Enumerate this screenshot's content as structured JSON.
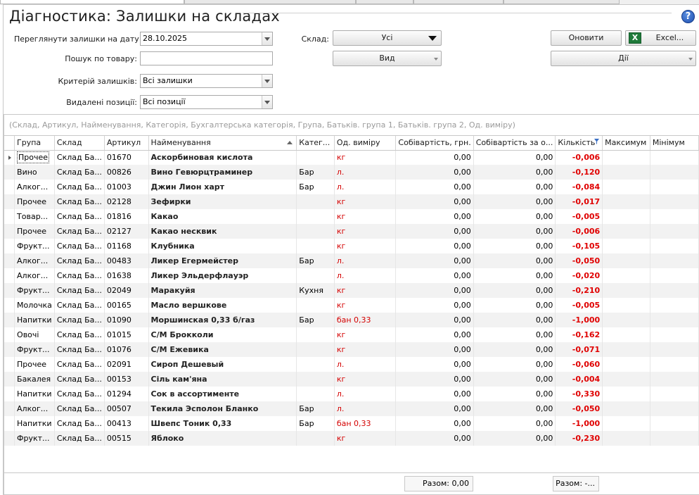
{
  "title": "Діагностика: Залишки на складах",
  "filters": {
    "date_label": "Переглянути залишки на дату:",
    "date_value": "28.10.2025",
    "search_label": "Пошук по товару:",
    "search_value": "",
    "criteria_label": "Критерій залишків:",
    "criteria_value": "Всі залишки",
    "deleted_label": "Видалені позиції:",
    "deleted_value": "Всі позиції",
    "warehouse_label": "Склад:",
    "warehouse_value": "Усі",
    "view_label": "Вид"
  },
  "toolbar": {
    "refresh_label": "Оновити",
    "excel_label": "Excel...",
    "excel_icon_letter": "X",
    "actions_label": "Дії"
  },
  "grid": {
    "group_hint": "(Склад, Артикул, Найменування, Категорія, Бухгалтерська категорія, Група, Батьків. група 1, Батьків. група 2, Од. виміру)",
    "columns": {
      "group": "Група",
      "warehouse": "Склад",
      "article": "Артикул",
      "name": "Найменування",
      "category": "Катег...",
      "unit": "Од. виміру",
      "cost": "Собівартість, грн.",
      "cost_per": "Собівартість за о...",
      "qty": "Кількість",
      "max": "Максимум",
      "min": "Мінімум"
    },
    "rows": [
      {
        "group": "Прочее",
        "warehouse": "Склад Ба...",
        "article": "01670",
        "name": "Аскорбиновая кислота",
        "category": "",
        "unit": "кг",
        "cost": "0,00",
        "cost_per": "0,00",
        "qty": "-0,006"
      },
      {
        "group": "Вино",
        "warehouse": "Склад Ба...",
        "article": "00826",
        "name": "Вино Гевюрцтраминер",
        "category": "Бар",
        "unit": "л.",
        "cost": "0,00",
        "cost_per": "0,00",
        "qty": "-0,120"
      },
      {
        "group": "Алког...",
        "warehouse": "Склад Ба...",
        "article": "01003",
        "name": "Джин Лион харт",
        "category": "Бар",
        "unit": "л.",
        "cost": "0,00",
        "cost_per": "0,00",
        "qty": "-0,084"
      },
      {
        "group": "Прочее",
        "warehouse": "Склад Ба...",
        "article": "02128",
        "name": "Зефирки",
        "category": "",
        "unit": "кг",
        "cost": "0,00",
        "cost_per": "0,00",
        "qty": "-0,017"
      },
      {
        "group": "Товар...",
        "warehouse": "Склад Ба...",
        "article": "01816",
        "name": "Какао",
        "category": "",
        "unit": "кг",
        "cost": "0,00",
        "cost_per": "0,00",
        "qty": "-0,005"
      },
      {
        "group": "Прочее",
        "warehouse": "Склад Ба...",
        "article": "02127",
        "name": "Какао несквик",
        "category": "",
        "unit": "кг",
        "cost": "0,00",
        "cost_per": "0,00",
        "qty": "-0,006"
      },
      {
        "group": "Фрукт...",
        "warehouse": "Склад Ба...",
        "article": "01168",
        "name": "Клубника",
        "category": "",
        "unit": "кг",
        "cost": "0,00",
        "cost_per": "0,00",
        "qty": "-0,105"
      },
      {
        "group": "Алког...",
        "warehouse": "Склад Ба...",
        "article": "00483",
        "name": "Ликер Егермейстер",
        "category": "Бар",
        "unit": "л.",
        "cost": "0,00",
        "cost_per": "0,00",
        "qty": "-0,050"
      },
      {
        "group": "Алког...",
        "warehouse": "Склад Ба...",
        "article": "01638",
        "name": "Ликер Эльдерфлауэр",
        "category": "",
        "unit": "л.",
        "cost": "0,00",
        "cost_per": "0,00",
        "qty": "-0,020"
      },
      {
        "group": "Фрукт...",
        "warehouse": "Склад Ба...",
        "article": "02049",
        "name": "Маракуйя",
        "category": "Кухня",
        "unit": "кг",
        "cost": "0,00",
        "cost_per": "0,00",
        "qty": "-0,210"
      },
      {
        "group": "Молочка",
        "warehouse": "Склад Ба...",
        "article": "00165",
        "name": "Масло вершкове",
        "category": "",
        "unit": "кг",
        "cost": "0,00",
        "cost_per": "0,00",
        "qty": "-0,005"
      },
      {
        "group": "Напитки",
        "warehouse": "Склад Ба...",
        "article": "01090",
        "name": "Моршинская 0,33 б/газ",
        "category": "Бар",
        "unit": "бан 0,33",
        "cost": "0,00",
        "cost_per": "0,00",
        "qty": "-1,000"
      },
      {
        "group": "Овочі",
        "warehouse": "Склад Ба...",
        "article": "01015",
        "name": "С/М Брокколи",
        "category": "",
        "unit": "кг",
        "cost": "0,00",
        "cost_per": "0,00",
        "qty": "-0,162"
      },
      {
        "group": "Фрукт...",
        "warehouse": "Склад Ба...",
        "article": "01076",
        "name": "С/М Ежевика",
        "category": "",
        "unit": "кг",
        "cost": "0,00",
        "cost_per": "0,00",
        "qty": "-0,071"
      },
      {
        "group": "Прочее",
        "warehouse": "Склад Ба...",
        "article": "02091",
        "name": "Сироп Дешевый",
        "category": "",
        "unit": "л.",
        "cost": "0,00",
        "cost_per": "0,00",
        "qty": "-0,060"
      },
      {
        "group": "Бакалея",
        "warehouse": "Склад Ба...",
        "article": "00153",
        "name": "Сіль кам'яна",
        "category": "",
        "unit": "кг",
        "cost": "0,00",
        "cost_per": "0,00",
        "qty": "-0,004"
      },
      {
        "group": "Напитки",
        "warehouse": "Склад Ба...",
        "article": "01294",
        "name": "Сок в ассортименте",
        "category": "",
        "unit": "л.",
        "cost": "0,00",
        "cost_per": "0,00",
        "qty": "-0,330"
      },
      {
        "group": "Алког...",
        "warehouse": "Склад Ба...",
        "article": "00507",
        "name": "Текила Эсполон Бланко",
        "category": "Бар",
        "unit": "л.",
        "cost": "0,00",
        "cost_per": "0,00",
        "qty": "-0,050"
      },
      {
        "group": "Напитки",
        "warehouse": "Склад Ба...",
        "article": "00413",
        "name": "Швепс Тоник 0,33",
        "category": "Бар",
        "unit": "бан 0,33",
        "cost": "0,00",
        "cost_per": "0,00",
        "qty": "-1,000"
      },
      {
        "group": "Фрукт...",
        "warehouse": "Склад Ба...",
        "article": "00515",
        "name": "Яблоко",
        "category": "",
        "unit": "кг",
        "cost": "0,00",
        "cost_per": "0,00",
        "qty": "-0,230"
      }
    ],
    "summary_cost": "Разом: 0,00",
    "summary_qty": "Разом: -..."
  }
}
